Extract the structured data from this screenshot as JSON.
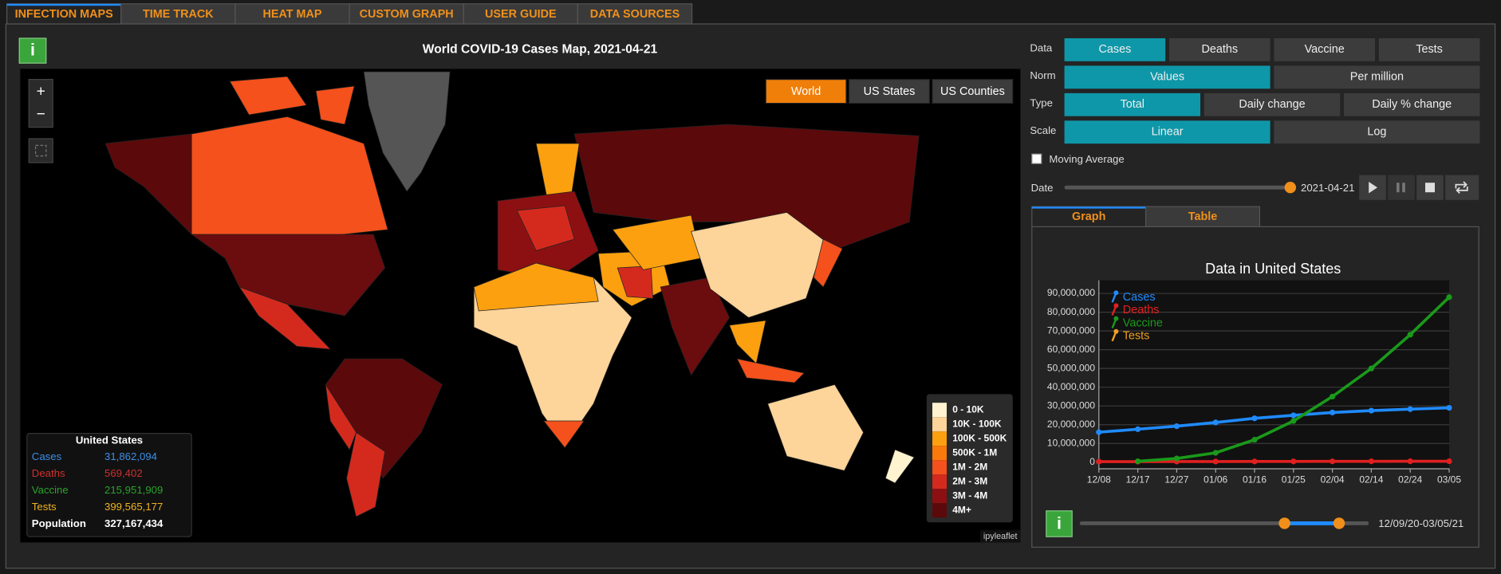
{
  "tabs": [
    "INFECTION MAPS",
    "TIME TRACK",
    "HEAT MAP",
    "CUSTOM GRAPH",
    "USER GUIDE",
    "DATA SOURCES"
  ],
  "info_icon": "i",
  "zoom": [
    "+",
    "−"
  ],
  "map": {
    "title": "World COVID-19 Cases Map, 2021-04-21",
    "regions": [
      "World",
      "US States",
      "US Counties"
    ],
    "legend": [
      "0 - 10K",
      "10K - 100K",
      "100K - 500K",
      "500K - 1M",
      "1M - 2M",
      "2M - 3M",
      "3M - 4M",
      "4M+"
    ],
    "legend_colors": [
      "#fff3d0",
      "#fdd49a",
      "#fda00f",
      "#f97a0a",
      "#f4511c",
      "#d42a1e",
      "#8c1012",
      "#5c090b"
    ],
    "attribution": "ipyleaflet",
    "info": {
      "title": "United States",
      "rows": [
        {
          "label": "Cases",
          "value": "31,862,094",
          "color": "#3d8fe8"
        },
        {
          "label": "Deaths",
          "value": "569,402",
          "color": "#d03030"
        },
        {
          "label": "Vaccine",
          "value": "215,951,909",
          "color": "#2aa32a"
        },
        {
          "label": "Tests",
          "value": "399,565,177",
          "color": "#f2b320"
        },
        {
          "label": "Population",
          "value": "327,167,434",
          "color": "#ffffff"
        }
      ]
    }
  },
  "controls": {
    "rows": [
      {
        "label": "Data",
        "options": [
          "Cases",
          "Deaths",
          "Vaccine",
          "Tests"
        ],
        "selected": 0
      },
      {
        "label": "Norm",
        "options": [
          "Values",
          "Per million"
        ],
        "selected": 0
      },
      {
        "label": "Type",
        "options": [
          "Total",
          "Daily change",
          "Daily % change"
        ],
        "selected": 0
      },
      {
        "label": "Scale",
        "options": [
          "Linear",
          "Log"
        ],
        "selected": 0
      }
    ],
    "moving_average": "Moving Average",
    "date_label": "Date",
    "date": "2021-04-21"
  },
  "panel_tabs": [
    "Graph",
    "Table"
  ],
  "range_label": "12/09/20-03/05/21",
  "chart_data": {
    "type": "line",
    "title": "Data in United States",
    "categories": [
      "12/08",
      "12/17",
      "12/27",
      "01/06",
      "01/16",
      "01/25",
      "02/04",
      "02/14",
      "02/24",
      "03/05"
    ],
    "series": [
      {
        "name": "Cases",
        "color": "#1f8bff",
        "values": [
          16000000,
          17600000,
          19200000,
          21200000,
          23400000,
          25000000,
          26500000,
          27500000,
          28300000,
          29000000
        ]
      },
      {
        "name": "Deaths",
        "color": "#e02020",
        "values": [
          290000,
          310000,
          335000,
          365000,
          395000,
          425000,
          455000,
          480000,
          500000,
          520000
        ]
      },
      {
        "name": "Vaccine",
        "color": "#1a9a1a",
        "values": [
          null,
          500000,
          2000000,
          5000000,
          12000000,
          22000000,
          35000000,
          50000000,
          68000000,
          88000000
        ]
      },
      {
        "name": "Tests",
        "color": "#f0a020",
        "values": [
          null,
          null,
          null,
          null,
          null,
          null,
          null,
          null,
          null,
          null
        ]
      }
    ],
    "ylim": [
      -3500000,
      97000000
    ],
    "yticks": [
      0,
      {
        "value": 10000000,
        "label": "10,000,000"
      },
      {
        "value": 20000000,
        "label": "20,000,000"
      },
      {
        "value": 30000000,
        "label": "30,000,000"
      },
      {
        "value": 40000000,
        "label": "40,000,000"
      },
      {
        "value": 50000000,
        "label": "50,000,000"
      },
      {
        "value": 60000000,
        "label": "60,000,000"
      },
      {
        "value": 70000000,
        "label": "70,000,000"
      },
      {
        "value": 80000000,
        "label": "80,000,000"
      },
      {
        "value": 90000000,
        "label": "90,000,000"
      }
    ],
    "grid": true
  }
}
